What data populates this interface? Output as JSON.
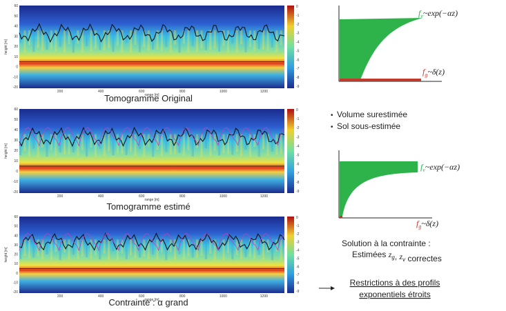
{
  "tomograms": [
    {
      "caption": "Tomogramme Original",
      "y_label": "height [m]",
      "x_label": "range [m]",
      "y_ticks": [
        "60",
        "50",
        "40",
        "30",
        "20",
        "10",
        "0",
        "-10",
        "-20"
      ],
      "x_ticks": [
        "200",
        "400",
        "600",
        "800",
        "1000",
        "1200"
      ],
      "colorbar_ticks": [
        "0",
        "-1",
        "-2",
        "-3",
        "-4",
        "-5",
        "-6",
        "-7",
        "-8",
        "-9"
      ]
    },
    {
      "caption": "Tomogramme estimé",
      "y_label": "height [m]",
      "x_label": "range [m]",
      "y_ticks": [
        "60",
        "50",
        "40",
        "30",
        "20",
        "10",
        "0",
        "-10",
        "-20"
      ],
      "x_ticks": [
        "200",
        "400",
        "600",
        "800",
        "1000",
        "1200"
      ],
      "colorbar_ticks": [
        "0",
        "-1",
        "-2",
        "-3",
        "-4",
        "-5",
        "-6",
        "-7",
        "-8",
        "-9"
      ]
    },
    {
      "caption": "Contrainte : α grand",
      "y_label": "height [m]",
      "x_label": "range [m]",
      "y_ticks": [
        "60",
        "50",
        "40",
        "30",
        "20",
        "10",
        "0",
        "-10",
        "-20"
      ],
      "x_ticks": [
        "200",
        "400",
        "600",
        "800",
        "1000",
        "1200"
      ],
      "colorbar_ticks": [
        "0",
        "-1",
        "-2",
        "-3",
        "-4",
        "-5",
        "-6",
        "-7",
        "-8",
        "-9"
      ]
    }
  ],
  "diagrams": [
    {
      "fv": {
        "f": "f",
        "sub": "v",
        "expr": "~exp(−αz)"
      },
      "fg": {
        "f": "f",
        "sub": "g",
        "expr": "~δ(z)"
      }
    },
    {
      "fv": {
        "f": "f",
        "sub": "v",
        "expr": "~exp(−αz)"
      },
      "fg": {
        "f": "f",
        "sub": "g",
        "expr": "~δ(z)"
      }
    }
  ],
  "bullets": [
    "Volume surestimée",
    "Sol sous-estimée"
  ],
  "solution": {
    "title": "Solution à la contrainte :",
    "detail": [
      {
        "t": "Estimées "
      },
      {
        "t": "z",
        "sub": "g"
      },
      {
        "t": ", "
      },
      {
        "t": "z",
        "sub": "v"
      },
      {
        "t": " correctes"
      }
    ]
  },
  "conclusion": [
    "Restrictions à des profils",
    "exponentiels étroits"
  ]
}
